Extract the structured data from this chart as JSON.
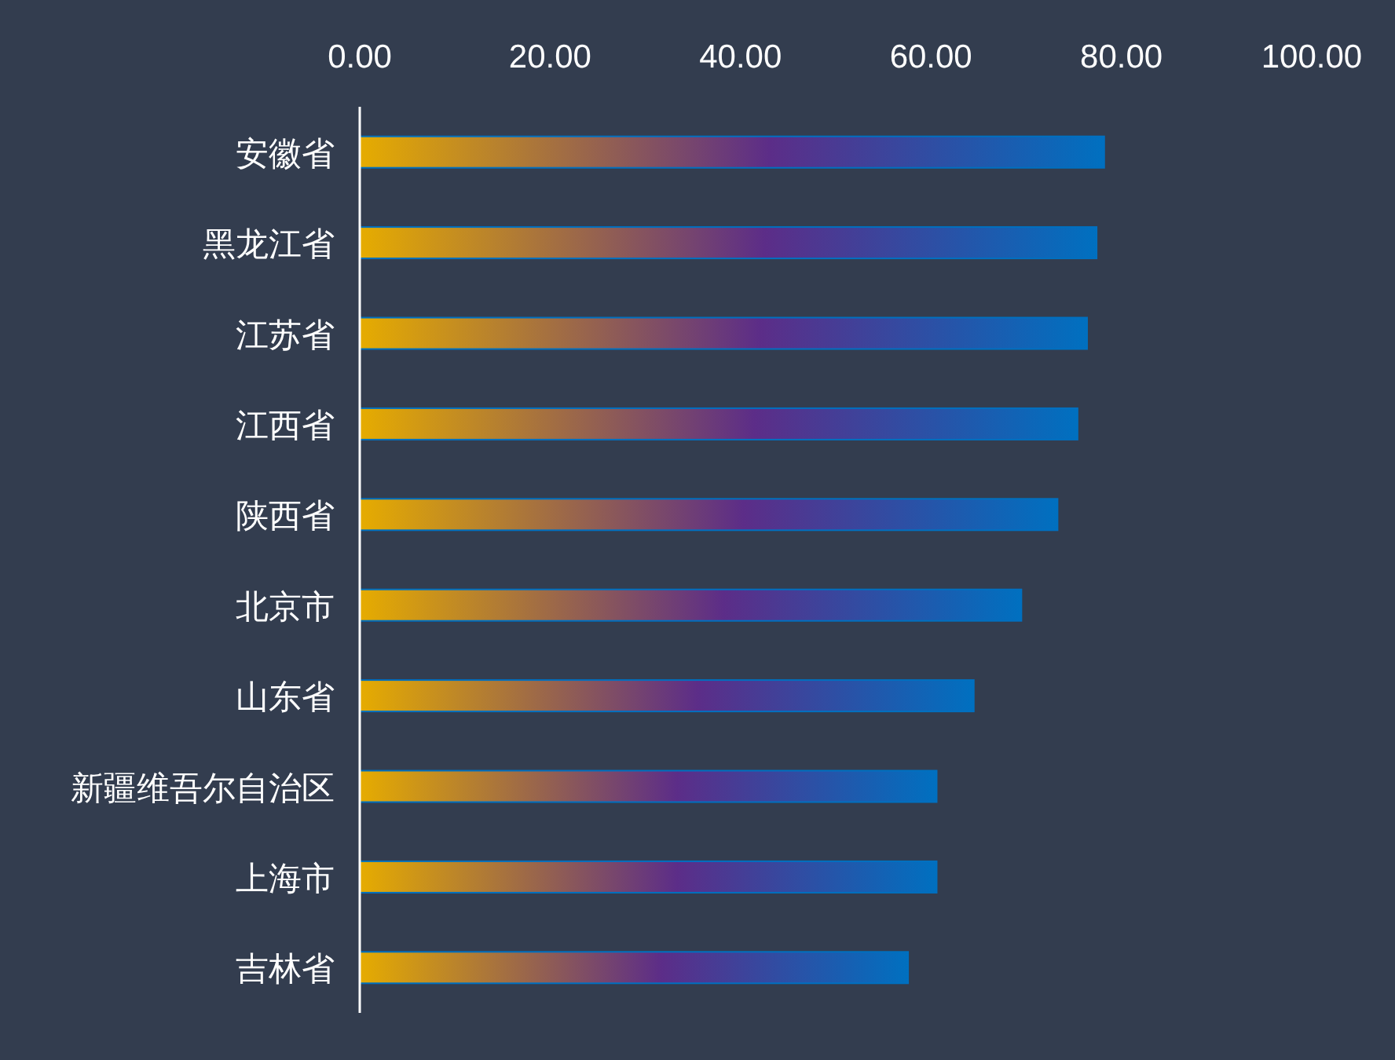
{
  "chart_data": {
    "type": "bar",
    "orientation": "horizontal",
    "categories": [
      "安徽省",
      "黑龙江省",
      "江苏省",
      "江西省",
      "陕西省",
      "北京市",
      "山东省",
      "新疆维吾尔自治区",
      "上海市",
      "吉林省"
    ],
    "series": [
      {
        "color": "#0070c0",
        "values": [
          78.2,
          77.4,
          76.4,
          75.4,
          73.3,
          69.5,
          64.5,
          60.6,
          60.6,
          57.6
        ]
      }
    ],
    "xlim": [
      0,
      100
    ],
    "xticks": [
      {
        "value": 0,
        "label": "0.00"
      },
      {
        "value": 20,
        "label": "20.00"
      },
      {
        "value": 40,
        "label": "40.00"
      },
      {
        "value": 60,
        "label": "60.00"
      },
      {
        "value": 80,
        "label": "80.00"
      },
      {
        "value": 100,
        "label": "100.00"
      }
    ],
    "tick_labels": "xy"
  }
}
